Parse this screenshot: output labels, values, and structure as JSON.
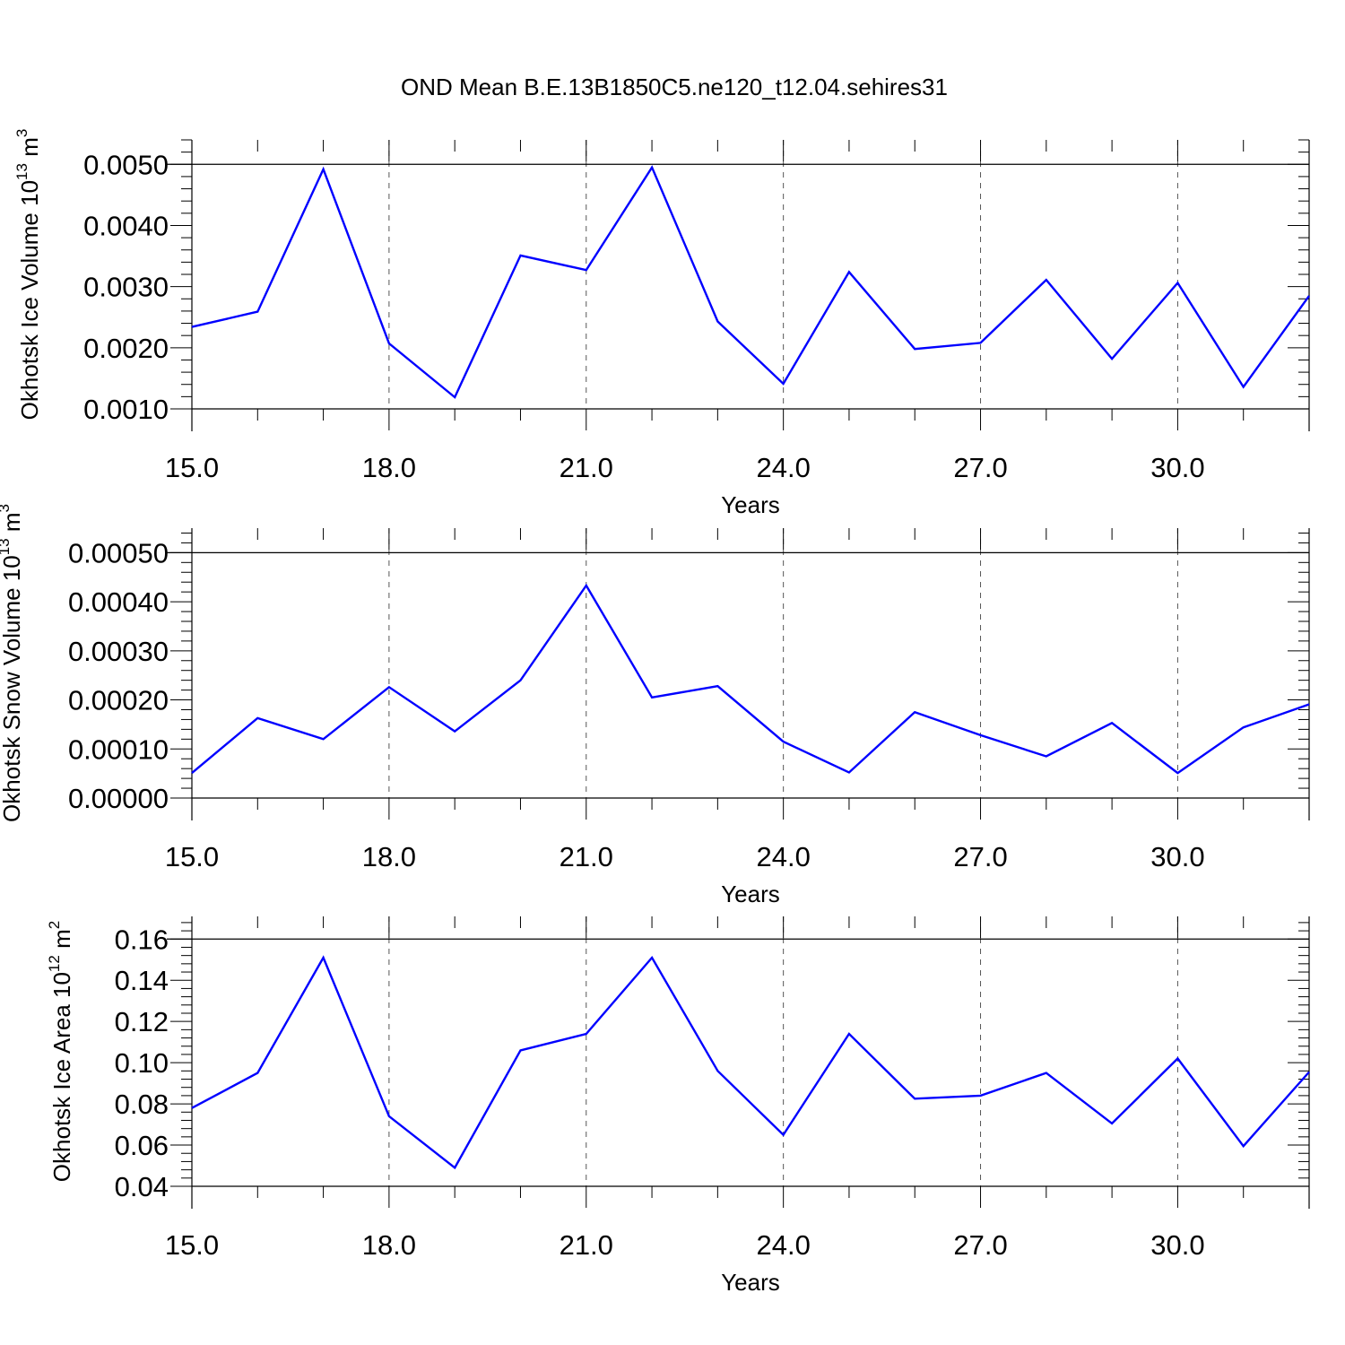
{
  "title": "OND Mean B.E.13B1850C5.ne120_t12.04.sehires31",
  "colors": {
    "line": "#0000ff",
    "axis": "#000000",
    "grid": "#555555"
  },
  "chart_data": [
    {
      "type": "line",
      "xlabel": "Years",
      "ylabel": {
        "text": "Okhotsk Ice Volume 10",
        "exp": "13",
        "unit": " m",
        "unit_exp": "3"
      },
      "xlim": [
        15,
        32
      ],
      "ylim": [
        0.001,
        0.0054
      ],
      "x_ticks": [
        "15.0",
        "18.0",
        "21.0",
        "24.0",
        "27.0",
        "30.0"
      ],
      "y_ticks": [
        "0.0010",
        "0.0020",
        "0.0030",
        "0.0040",
        "0.0050"
      ],
      "x": [
        15,
        16,
        17,
        18,
        19,
        20,
        21,
        22,
        23,
        24,
        25,
        26,
        27,
        28,
        29,
        30,
        31,
        32
      ],
      "values": [
        0.00234,
        0.00259,
        0.00492,
        0.00207,
        0.00119,
        0.00351,
        0.00327,
        0.00495,
        0.00243,
        0.00141,
        0.00324,
        0.00198,
        0.00208,
        0.00311,
        0.00182,
        0.00306,
        0.00136,
        0.00285
      ],
      "grid": "dashed vertical at major x ticks"
    },
    {
      "type": "line",
      "xlabel": "Years",
      "ylabel": {
        "text": "Okhotsk Snow Volume 10",
        "exp": "13",
        "unit": " m",
        "unit_exp": "3"
      },
      "xlim": [
        15,
        32
      ],
      "ylim": [
        0.0,
        0.00055
      ],
      "x_ticks": [
        "15.0",
        "18.0",
        "21.0",
        "24.0",
        "27.0",
        "30.0"
      ],
      "y_ticks": [
        "0.00000",
        "0.00010",
        "0.00020",
        "0.00030",
        "0.00040",
        "0.00050"
      ],
      "x": [
        15,
        16,
        17,
        18,
        19,
        20,
        21,
        22,
        23,
        24,
        25,
        26,
        27,
        28,
        29,
        30,
        31,
        32
      ],
      "values": [
        5.1e-05,
        0.000163,
        0.00012,
        0.000226,
        0.000136,
        0.00024,
        0.000433,
        0.000205,
        0.000228,
        0.000115,
        5.2e-05,
        0.000175,
        0.000128,
        8.5e-05,
        0.000153,
        5.1e-05,
        0.000144,
        0.000191
      ],
      "grid": "dashed vertical at major x ticks"
    },
    {
      "type": "line",
      "xlabel": "Years",
      "ylabel": {
        "text": "Okhotsk Ice Area 10",
        "exp": "12",
        "unit": " m",
        "unit_exp": "2"
      },
      "xlim": [
        15,
        32
      ],
      "ylim": [
        0.04,
        0.171
      ],
      "x_ticks": [
        "15.0",
        "18.0",
        "21.0",
        "24.0",
        "27.0",
        "30.0"
      ],
      "y_ticks": [
        "0.04",
        "0.06",
        "0.08",
        "0.10",
        "0.12",
        "0.14",
        "0.16"
      ],
      "x": [
        15,
        16,
        17,
        18,
        19,
        20,
        21,
        22,
        23,
        24,
        25,
        26,
        27,
        28,
        29,
        30,
        31,
        32
      ],
      "values": [
        0.078,
        0.095,
        0.151,
        0.074,
        0.049,
        0.106,
        0.114,
        0.151,
        0.096,
        0.065,
        0.114,
        0.0825,
        0.084,
        0.095,
        0.0705,
        0.102,
        0.0595,
        0.0955
      ],
      "grid": "dashed vertical at major x ticks"
    }
  ]
}
